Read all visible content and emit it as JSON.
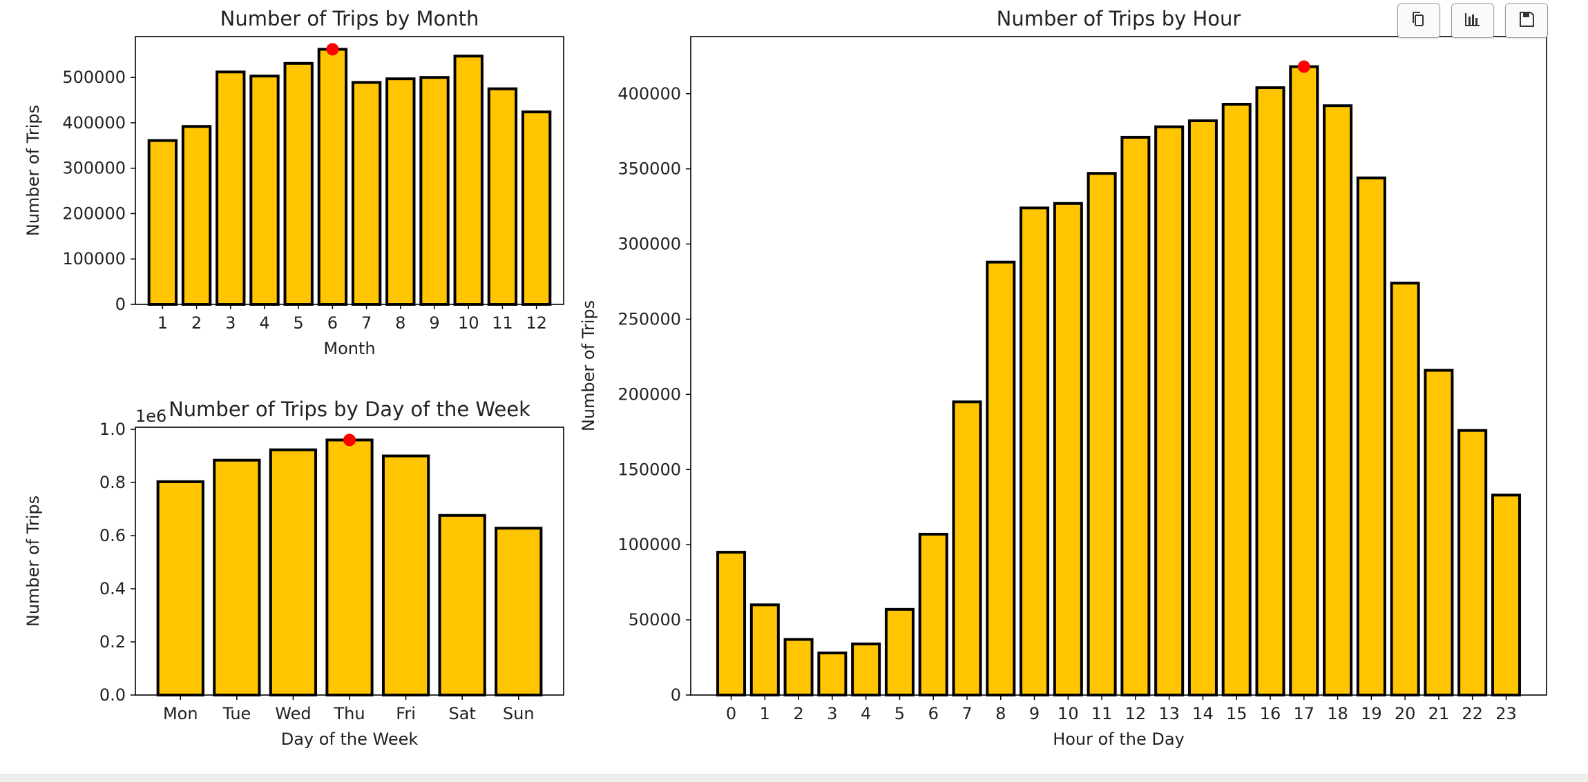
{
  "toolbar": {
    "buttons": [
      {
        "name": "copy-button",
        "icon": "copy-icon"
      },
      {
        "name": "chart-button",
        "icon": "bar-chart-icon"
      },
      {
        "name": "save-button",
        "icon": "save-icon"
      }
    ]
  },
  "colors": {
    "bar_fill": "#ffc500",
    "bar_edge": "#000000",
    "peak_marker": "#ff0000"
  },
  "chart_data": [
    {
      "id": "month",
      "type": "bar",
      "title": "Number of Trips by Month",
      "xlabel": "Month",
      "ylabel": "Number of Trips",
      "categories": [
        "1",
        "2",
        "3",
        "4",
        "5",
        "6",
        "7",
        "8",
        "9",
        "10",
        "11",
        "12"
      ],
      "values": [
        361000,
        392000,
        512000,
        503000,
        531000,
        562000,
        489000,
        497000,
        500000,
        547000,
        475000,
        424000
      ],
      "yticks": [
        0,
        100000,
        200000,
        300000,
        400000,
        500000
      ],
      "ytick_labels": [
        "0",
        "100000",
        "200000",
        "300000",
        "400000",
        "500000"
      ],
      "ylim": [
        0,
        590000
      ],
      "peak_marker": {
        "category": "6",
        "value": 562000
      },
      "grid": false
    },
    {
      "id": "weekday",
      "type": "bar",
      "title": "Number of Trips by Day of the Week",
      "xlabel": "Day of the Week",
      "ylabel": "Number of Trips",
      "offset_label": "1e6",
      "categories": [
        "Mon",
        "Tue",
        "Wed",
        "Thu",
        "Fri",
        "Sat",
        "Sun"
      ],
      "values": [
        0.803,
        0.884,
        0.923,
        0.96,
        0.9,
        0.676,
        0.628
      ],
      "yticks": [
        0,
        0.2,
        0.4,
        0.6,
        0.8,
        1.0
      ],
      "ytick_labels": [
        "0.0",
        "0.2",
        "0.4",
        "0.6",
        "0.8",
        "1.0"
      ],
      "ylim": [
        0,
        1.008
      ],
      "peak_marker": {
        "category": "Thu",
        "value": 0.96
      },
      "grid": false
    },
    {
      "id": "hour",
      "type": "bar",
      "title": "Number of Trips by Hour",
      "xlabel": "Hour of the Day",
      "ylabel": "Number of Trips",
      "categories": [
        "0",
        "1",
        "2",
        "3",
        "4",
        "5",
        "6",
        "7",
        "8",
        "9",
        "10",
        "11",
        "12",
        "13",
        "14",
        "15",
        "16",
        "17",
        "18",
        "19",
        "20",
        "21",
        "22",
        "23"
      ],
      "values": [
        95000,
        60000,
        37000,
        28000,
        34000,
        57000,
        107000,
        195000,
        288000,
        324000,
        327000,
        347000,
        371000,
        378000,
        382000,
        393000,
        404000,
        418000,
        392000,
        344000,
        274000,
        216000,
        176000,
        133000
      ],
      "yticks": [
        0,
        50000,
        100000,
        150000,
        200000,
        250000,
        300000,
        350000,
        400000
      ],
      "ytick_labels": [
        "0",
        "50000",
        "100000",
        "150000",
        "200000",
        "250000",
        "300000",
        "350000",
        "400000"
      ],
      "ylim": [
        0,
        438000
      ],
      "xlim": [
        -1.2,
        24.2
      ],
      "peak_marker": {
        "category": "17",
        "value": 418000
      },
      "grid": false
    }
  ]
}
